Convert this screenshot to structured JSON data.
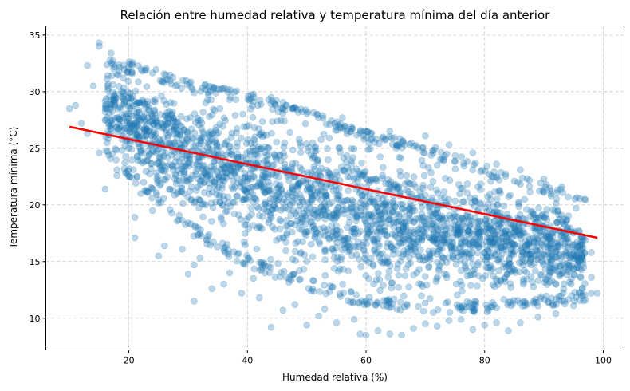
{
  "chart_data": {
    "type": "scatter",
    "title": "Relación entre humedad relativa y temperatura mínima del día anterior",
    "xlabel": "Humedad relativa (%)",
    "ylabel": "Temperatura mínima (°C)",
    "xlim": [
      6,
      103.5
    ],
    "ylim": [
      7.2,
      35.8
    ],
    "xticks": [
      20,
      40,
      60,
      80,
      100
    ],
    "yticks": [
      10,
      15,
      20,
      25,
      30,
      35
    ],
    "grid": true,
    "grid_style": "dashed",
    "point_color": "#1f77b4",
    "point_alpha": 0.3,
    "regression_color": "#ff0000",
    "regression_line": {
      "x": [
        10,
        99
      ],
      "y": [
        26.9,
        17.1
      ]
    },
    "band": {
      "upper": [
        [
          16,
          33.0
        ],
        [
          22,
          32.5
        ],
        [
          30,
          31.0
        ],
        [
          40,
          30.0
        ],
        [
          50,
          28.5
        ],
        [
          60,
          26.5
        ],
        [
          70,
          25.5
        ],
        [
          80,
          23.5
        ],
        [
          90,
          22.0
        ],
        [
          97,
          20.5
        ]
      ],
      "lower": [
        [
          16,
          24.5
        ],
        [
          22,
          21.5
        ],
        [
          30,
          17.5
        ],
        [
          40,
          14.5
        ],
        [
          50,
          12.5
        ],
        [
          60,
          11.0
        ],
        [
          70,
          10.5
        ],
        [
          80,
          10.5
        ],
        [
          90,
          11.0
        ],
        [
          97,
          11.5
        ]
      ]
    },
    "outliers": [
      [
        10,
        28.5
      ],
      [
        11,
        28.8
      ],
      [
        12,
        27.2
      ],
      [
        13,
        26.3
      ],
      [
        13,
        32.3
      ],
      [
        14,
        30.5
      ],
      [
        15,
        34.3
      ],
      [
        15,
        34.0
      ],
      [
        15,
        24.6
      ],
      [
        16,
        21.4
      ],
      [
        17,
        33.4
      ],
      [
        18,
        23.1
      ],
      [
        18,
        22.6
      ],
      [
        20,
        22.5
      ],
      [
        21,
        18.9
      ],
      [
        21,
        17.1
      ],
      [
        22,
        21.0
      ],
      [
        24,
        19.5
      ],
      [
        25,
        15.5
      ],
      [
        26,
        16.4
      ],
      [
        29,
        16.1
      ],
      [
        30,
        13.9
      ],
      [
        31,
        11.5
      ],
      [
        31,
        14.7
      ],
      [
        32,
        15.3
      ],
      [
        34,
        12.6
      ],
      [
        36,
        13.0
      ],
      [
        37,
        14.0
      ],
      [
        39,
        12.2
      ],
      [
        41,
        13.5
      ],
      [
        42,
        11.8
      ],
      [
        43,
        14.6
      ],
      [
        44,
        9.2
      ],
      [
        46,
        10.7
      ],
      [
        48,
        11.2
      ],
      [
        50,
        9.4
      ],
      [
        52,
        10.2
      ],
      [
        53,
        10.8
      ],
      [
        55,
        9.6
      ],
      [
        58,
        9.9
      ],
      [
        59,
        8.6
      ],
      [
        60,
        8.5
      ],
      [
        62,
        8.9
      ],
      [
        64,
        8.6
      ],
      [
        66,
        8.5
      ],
      [
        68,
        9.1
      ],
      [
        70,
        9.5
      ],
      [
        72,
        9.3
      ],
      [
        74,
        9.8
      ],
      [
        76,
        9.9
      ],
      [
        78,
        9.0
      ],
      [
        80,
        9.4
      ],
      [
        82,
        9.6
      ],
      [
        84,
        8.9
      ],
      [
        86,
        9.6
      ],
      [
        89,
        10.1
      ],
      [
        92,
        10.4
      ],
      [
        95,
        11.1
      ],
      [
        97,
        11.6
      ],
      [
        98,
        12.2
      ],
      [
        99,
        12.2
      ],
      [
        98,
        13.6
      ],
      [
        98,
        15.8
      ],
      [
        96,
        14.4
      ],
      [
        31,
        29.9
      ],
      [
        37,
        29.3
      ],
      [
        44,
        29.5
      ],
      [
        48,
        28.6
      ],
      [
        56,
        27.7
      ],
      [
        59,
        26.3
      ],
      [
        64,
        26.5
      ],
      [
        70,
        26.1
      ],
      [
        74,
        25.3
      ],
      [
        78,
        24.6
      ],
      [
        82,
        23.6
      ],
      [
        86,
        23.1
      ],
      [
        90,
        22.3
      ],
      [
        93,
        21.6
      ]
    ]
  }
}
